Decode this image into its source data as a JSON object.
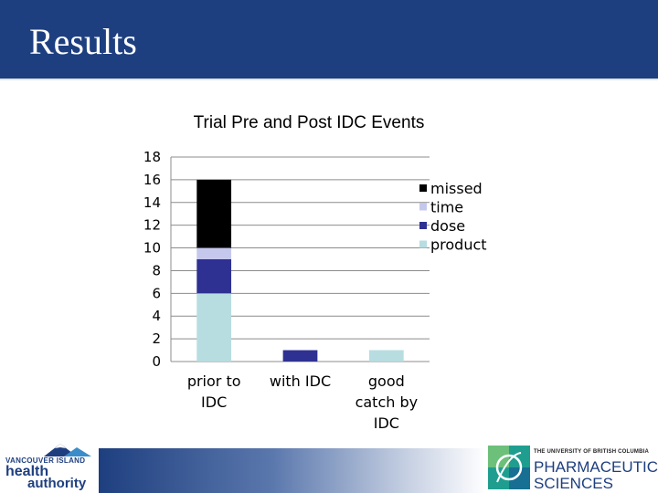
{
  "slide": {
    "title": "Results"
  },
  "footer": {
    "left_logo": {
      "line1": "VANCOUVER ISLAND",
      "line2": "health",
      "line3": "authority"
    },
    "right_logo": {
      "line0": "THE UNIVERSITY OF BRITISH COLUMBIA",
      "line1": "PHARMACEUTICAL",
      "line2": "SCIENCES"
    }
  },
  "chart_data": {
    "type": "bar",
    "stacked": true,
    "title": "Trial Pre and Post IDC Events",
    "categories": [
      "prior to IDC",
      "with IDC",
      "good catch by IDC"
    ],
    "series": [
      {
        "name": "product",
        "color": "#b7dde0",
        "values": [
          6,
          0,
          1
        ]
      },
      {
        "name": "dose",
        "color": "#2e3192",
        "values": [
          3,
          1,
          0
        ]
      },
      {
        "name": "time",
        "color": "#c5c8ec",
        "values": [
          1,
          0,
          0
        ]
      },
      {
        "name": "missed",
        "color": "#000000",
        "values": [
          6,
          0,
          0
        ]
      }
    ],
    "ylim": [
      0,
      18
    ],
    "yticks": [
      "18",
      "16",
      "14",
      "12",
      "10",
      "8",
      "6",
      "4",
      "2",
      "0"
    ],
    "grid": true,
    "legend": "right"
  }
}
